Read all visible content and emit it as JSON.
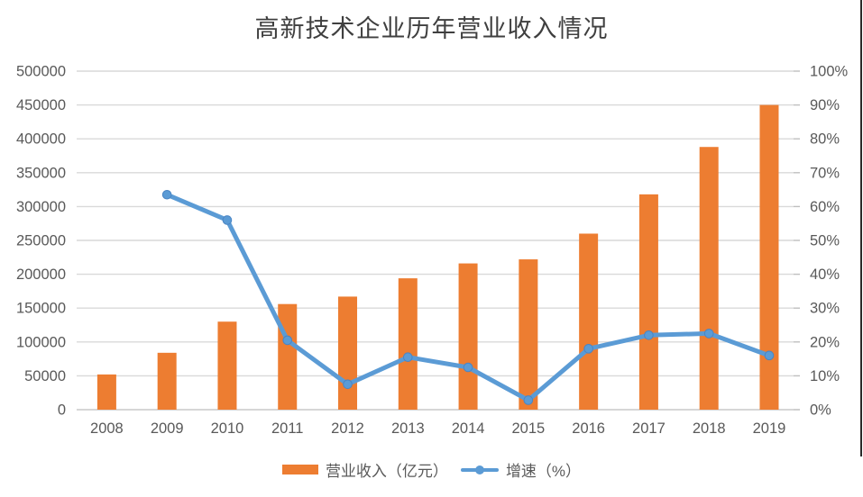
{
  "colors": {
    "bar": "#ED7D31",
    "line": "#5B9BD5",
    "marker_stroke": "#4A85C4",
    "grid": "#D9D9D9",
    "axis_line": "#C8C8C8",
    "tick": "#BFBFBF",
    "axis_text": "#595959",
    "title_text": "#3F3F3F"
  },
  "chart_data": {
    "type": "combo-bar-line",
    "title": "高新技术企业历年营业收入情况",
    "categories": [
      "2008",
      "2009",
      "2010",
      "2011",
      "2012",
      "2013",
      "2014",
      "2015",
      "2016",
      "2017",
      "2018",
      "2019"
    ],
    "series": [
      {
        "name": "营业收入（亿元）",
        "type": "bar",
        "axis": "left",
        "color": "#ED7D31",
        "values": [
          52000,
          84000,
          130000,
          156000,
          167000,
          194000,
          216000,
          222000,
          260000,
          318000,
          388000,
          450000
        ]
      },
      {
        "name": "增速（%）",
        "type": "line",
        "axis": "right",
        "color": "#5B9BD5",
        "values": [
          null,
          63.5,
          56,
          20.5,
          7.5,
          15.5,
          12.5,
          2.8,
          18,
          22,
          22.5,
          16
        ]
      }
    ],
    "left_axis": {
      "min": 0,
      "max": 500000,
      "step": 50000,
      "suffix": ""
    },
    "right_axis": {
      "min": 0,
      "max": 100,
      "step": 10,
      "suffix": "%"
    },
    "grid": true,
    "legend_position": "bottom"
  }
}
